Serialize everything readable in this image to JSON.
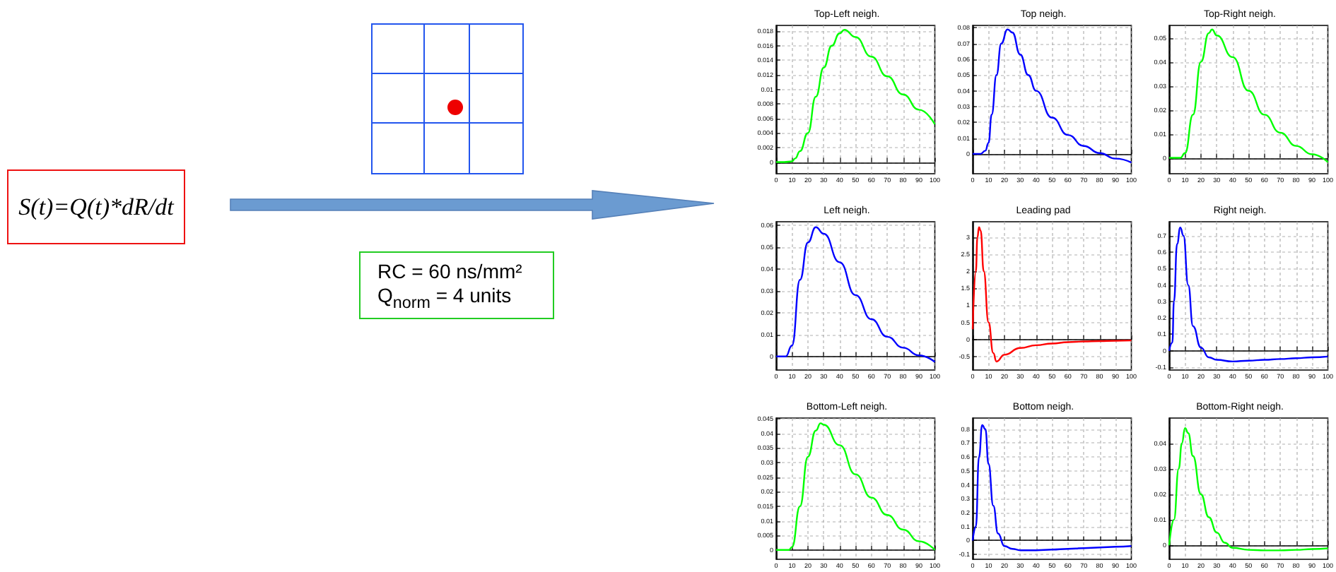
{
  "chart_data": [
    {
      "type": "other",
      "annotations": [
        "S(t)=Q(t)*dR/dt",
        "RC = 60 ns/mm²",
        "Q$_{norm}$ = 4 units"
      ]
    },
    {
      "type": "line",
      "title": "Top-Left neigh.",
      "x": [
        0,
        5,
        10,
        12,
        15,
        20,
        25,
        30,
        35,
        40,
        43,
        50,
        60,
        70,
        80,
        90,
        100
      ],
      "series": [
        {
          "color": "#00ff00",
          "values": [
            0,
            0,
            0.0001,
            0.0005,
            0.0015,
            0.004,
            0.009,
            0.013,
            0.016,
            0.0177,
            0.0182,
            0.0172,
            0.0145,
            0.0118,
            0.0093,
            0.0072,
            0.0052
          ]
        }
      ],
      "xlim": [
        0,
        100
      ],
      "xticks": [
        0,
        10,
        20,
        30,
        40,
        50,
        60,
        70,
        80,
        90,
        100
      ],
      "ylim": [
        -0.0016,
        0.0188
      ],
      "yticks": [
        0,
        0.002,
        0.004,
        0.006,
        0.008,
        0.01,
        0.012,
        0.014,
        0.016,
        0.018
      ],
      "grid": true,
      "marker": "none"
    },
    {
      "type": "line",
      "title": "Top neigh.",
      "x": [
        0,
        5,
        8,
        10,
        12,
        15,
        18,
        22,
        25,
        30,
        35,
        40,
        50,
        60,
        70,
        80,
        90,
        100
      ],
      "series": [
        {
          "color": "#0000ff",
          "values": [
            0,
            0,
            0.002,
            0.007,
            0.025,
            0.05,
            0.07,
            0.079,
            0.077,
            0.063,
            0.05,
            0.04,
            0.023,
            0.012,
            0.005,
            0.0005,
            -0.003,
            -0.0055
          ]
        }
      ],
      "xlim": [
        0,
        100
      ],
      "xticks": [
        0,
        10,
        20,
        30,
        40,
        50,
        60,
        70,
        80,
        90,
        100
      ],
      "ylim": [
        -0.0126,
        0.0815
      ],
      "yticks": [
        0,
        0.01,
        0.02,
        0.03,
        0.04,
        0.05,
        0.06,
        0.07,
        0.08
      ],
      "grid": true,
      "marker": "none"
    },
    {
      "type": "line",
      "title": "Top-Right neigh.",
      "x": [
        0,
        5,
        7,
        10,
        15,
        20,
        25,
        27,
        30,
        40,
        50,
        60,
        70,
        80,
        90,
        100
      ],
      "series": [
        {
          "color": "#00ff00",
          "values": [
            0,
            0,
            0,
            0.002,
            0.018,
            0.04,
            0.052,
            0.0535,
            0.051,
            0.042,
            0.028,
            0.018,
            0.0105,
            0.005,
            0.0015,
            -0.0018
          ]
        }
      ],
      "xlim": [
        0,
        100
      ],
      "xticks": [
        0,
        10,
        20,
        30,
        40,
        50,
        60,
        70,
        80,
        90,
        100
      ],
      "ylim": [
        -0.0066,
        0.0552
      ],
      "yticks": [
        0,
        0.01,
        0.02,
        0.03,
        0.04,
        0.05
      ],
      "grid": true,
      "marker": "none"
    },
    {
      "type": "line",
      "title": "Left neigh.",
      "x": [
        0,
        4,
        6,
        10,
        15,
        20,
        25,
        30,
        40,
        50,
        60,
        70,
        80,
        90,
        100
      ],
      "series": [
        {
          "color": "#0000ff",
          "values": [
            0,
            0,
            0,
            0.005,
            0.035,
            0.052,
            0.059,
            0.056,
            0.043,
            0.028,
            0.017,
            0.009,
            0.004,
            0.0005,
            -0.0025
          ]
        }
      ],
      "xlim": [
        0,
        100
      ],
      "xticks": [
        0,
        10,
        20,
        30,
        40,
        50,
        60,
        70,
        80,
        90,
        100
      ],
      "ylim": [
        -0.0062,
        0.0615
      ],
      "yticks": [
        0,
        0.01,
        0.02,
        0.03,
        0.04,
        0.05,
        0.06
      ],
      "grid": true,
      "marker": "none"
    },
    {
      "type": "line",
      "title": "Leading pad",
      "x": [
        0,
        2,
        3,
        4,
        5,
        7,
        10,
        13,
        15,
        20,
        30,
        40,
        50,
        60,
        70,
        80,
        90,
        100
      ],
      "series": [
        {
          "color": "#ff0000",
          "values": [
            0.3,
            2.0,
            3.0,
            3.3,
            3.2,
            2.0,
            0.5,
            -0.4,
            -0.65,
            -0.45,
            -0.25,
            -0.17,
            -0.12,
            -0.08,
            -0.06,
            -0.05,
            -0.04,
            -0.03
          ]
        }
      ],
      "xlim": [
        0,
        100
      ],
      "xticks": [
        0,
        10,
        20,
        30,
        40,
        50,
        60,
        70,
        80,
        90,
        100
      ],
      "ylim": [
        -0.9,
        3.46
      ],
      "yticks": [
        -0.5,
        0,
        0.5,
        1,
        1.5,
        2,
        2.5,
        3
      ],
      "grid": true,
      "marker": "none"
    },
    {
      "type": "line",
      "title": "Right neigh.",
      "x": [
        0,
        2,
        3,
        5,
        7,
        9,
        12,
        15,
        20,
        25,
        30,
        40,
        50,
        60,
        70,
        80,
        90,
        100
      ],
      "series": [
        {
          "color": "#0000ff",
          "values": [
            0,
            0.05,
            0.3,
            0.65,
            0.75,
            0.7,
            0.4,
            0.15,
            0.02,
            -0.04,
            -0.055,
            -0.065,
            -0.06,
            -0.055,
            -0.05,
            -0.045,
            -0.04,
            -0.035
          ]
        }
      ],
      "xlim": [
        0,
        100
      ],
      "xticks": [
        0,
        10,
        20,
        30,
        40,
        50,
        60,
        70,
        80,
        90,
        100
      ],
      "ylim": [
        -0.117,
        0.785
      ],
      "yticks": [
        -0.1,
        0,
        0.1,
        0.2,
        0.3,
        0.4,
        0.5,
        0.6,
        0.7
      ],
      "grid": true,
      "marker": "none"
    },
    {
      "type": "line",
      "title": "Bottom-Left neigh.",
      "x": [
        0,
        5,
        8,
        10,
        15,
        20,
        25,
        28,
        30,
        40,
        50,
        60,
        70,
        80,
        90,
        100
      ],
      "series": [
        {
          "color": "#00ff00",
          "values": [
            0,
            0,
            0,
            0.001,
            0.015,
            0.032,
            0.041,
            0.0435,
            0.043,
            0.036,
            0.026,
            0.018,
            0.012,
            0.007,
            0.003,
            0
          ]
        }
      ],
      "xlim": [
        0,
        100
      ],
      "xticks": [
        0,
        10,
        20,
        30,
        40,
        50,
        60,
        70,
        80,
        90,
        100
      ],
      "ylim": [
        -0.0032,
        0.0453
      ],
      "yticks": [
        0,
        0.005,
        0.01,
        0.015,
        0.02,
        0.025,
        0.03,
        0.035,
        0.04,
        0.045
      ],
      "grid": true,
      "marker": "none"
    },
    {
      "type": "line",
      "title": "Bottom neigh.",
      "x": [
        0,
        2,
        4,
        6,
        8,
        10,
        13,
        16,
        20,
        25,
        30,
        40,
        50,
        60,
        70,
        80,
        90,
        100
      ],
      "series": [
        {
          "color": "#0000ff",
          "values": [
            0,
            0.1,
            0.6,
            0.83,
            0.8,
            0.55,
            0.25,
            0.05,
            -0.04,
            -0.06,
            -0.07,
            -0.07,
            -0.065,
            -0.06,
            -0.055,
            -0.05,
            -0.045,
            -0.04
          ]
        }
      ],
      "xlim": [
        0,
        100
      ],
      "xticks": [
        0,
        10,
        20,
        30,
        40,
        50,
        60,
        70,
        80,
        90,
        100
      ],
      "ylim": [
        -0.135,
        0.88
      ],
      "yticks": [
        -0.1,
        0,
        0.1,
        0.2,
        0.3,
        0.4,
        0.5,
        0.6,
        0.7,
        0.8
      ],
      "grid": true,
      "marker": "none"
    },
    {
      "type": "line",
      "title": "Bottom-Right neigh.",
      "x": [
        0,
        3,
        6,
        8,
        10,
        12,
        15,
        20,
        25,
        30,
        35,
        40,
        50,
        60,
        70,
        80,
        90,
        100
      ],
      "series": [
        {
          "color": "#00ff00",
          "values": [
            0,
            0.01,
            0.03,
            0.04,
            0.046,
            0.044,
            0.035,
            0.02,
            0.011,
            0.005,
            0.001,
            -0.001,
            -0.0018,
            -0.002,
            -0.002,
            -0.0018,
            -0.0015,
            -0.0012
          ]
        }
      ],
      "xlim": [
        0,
        100
      ],
      "xticks": [
        0,
        10,
        20,
        30,
        40,
        50,
        60,
        70,
        80,
        90,
        100
      ],
      "ylim": [
        -0.0055,
        0.0499
      ],
      "yticks": [
        0,
        0.01,
        0.02,
        0.03,
        0.04
      ],
      "grid": true,
      "marker": "none"
    }
  ]
}
